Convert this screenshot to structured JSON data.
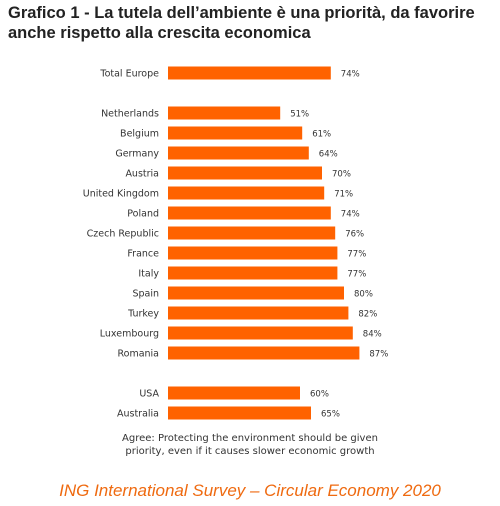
{
  "header": {
    "title_line1": "Grafico 1 - La tutela dell’ambiente è una priorità, da favorire",
    "title_line2": "anche rispetto alla crescita economica"
  },
  "chart_data": {
    "type": "bar",
    "orientation": "horizontal",
    "categories": [
      "Total Europe",
      "Netherlands",
      "Belgium",
      "Germany",
      "Austria",
      "United Kingdom",
      "Poland",
      "Czech Republic",
      "France",
      "Italy",
      "Spain",
      "Turkey",
      "Luxembourg",
      "Romania",
      "USA",
      "Australia"
    ],
    "values": [
      74,
      51,
      61,
      64,
      70,
      71,
      74,
      76,
      77,
      77,
      80,
      82,
      84,
      87,
      60,
      65
    ],
    "value_labels": [
      "74%",
      "51%",
      "61%",
      "64%",
      "70%",
      "71%",
      "74%",
      "76%",
      "77%",
      "77%",
      "80%",
      "82%",
      "84%",
      "87%",
      "60%",
      "65%"
    ],
    "groups": [
      [
        0
      ],
      [
        1,
        2,
        3,
        4,
        5,
        6,
        7,
        8,
        9,
        10,
        11,
        12,
        13
      ],
      [
        14,
        15
      ]
    ],
    "xlim": [
      0,
      100
    ],
    "bar_color": "#ff6200",
    "grid": false
  },
  "note": {
    "line1": "Agree: Protecting the environment should be given",
    "line2": "priority, even if it causes slower economic growth"
  },
  "source": "ING International Survey – Circular Economy 2020"
}
